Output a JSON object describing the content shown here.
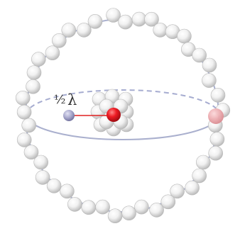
{
  "figure": {
    "label_fraction": "½",
    "label_symbol": "λ"
  },
  "colors": {
    "sphere": "#ededed",
    "sphere_edge": "#b4b4b4",
    "ring": "#aab0ce",
    "dashed_ring": "#a6acd0",
    "red_ball": "#e8121e",
    "faded_red_ball": "#e89aa0",
    "blue_ball": "#9f9fc6",
    "connector": "#e02020"
  }
}
